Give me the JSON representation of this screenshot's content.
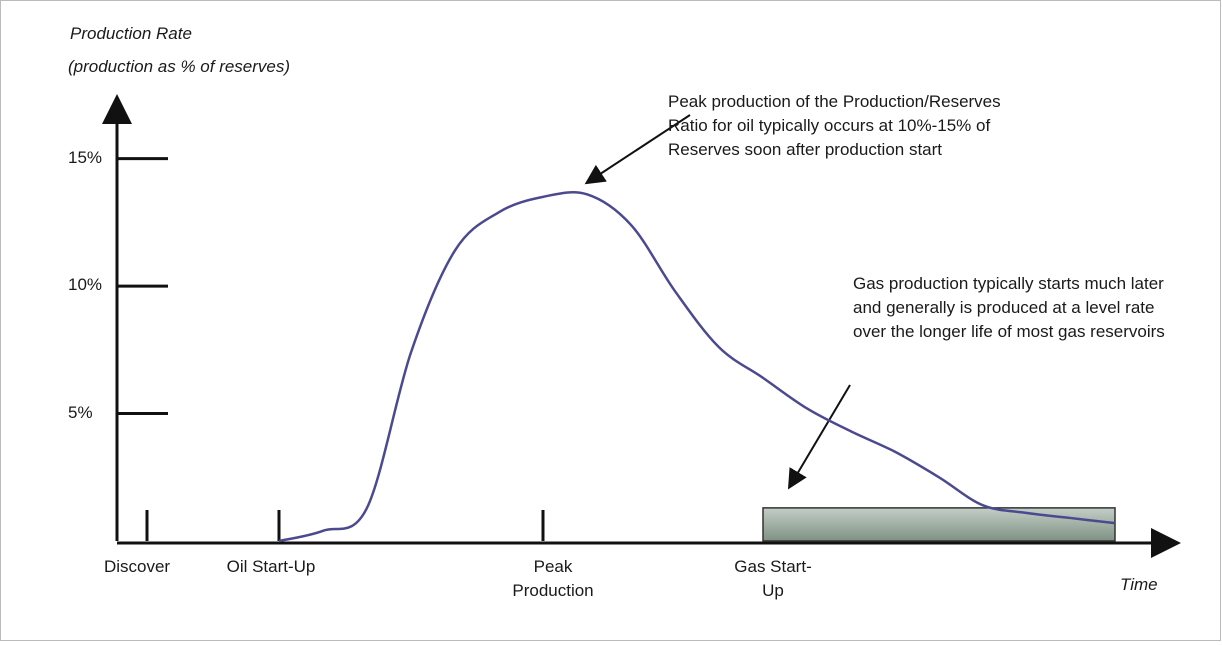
{
  "chart_data": {
    "type": "line",
    "title": "Production Rate",
    "subtitle": "(production as % of reserves)",
    "x_label": "Time",
    "categories": [
      "Discover",
      null,
      null,
      "Oil Start-Up",
      null,
      null,
      null,
      null,
      null,
      "Peak Production",
      null,
      null,
      null,
      null,
      "Gas Start-Up",
      null,
      null,
      null,
      null,
      null,
      null,
      null,
      null
    ],
    "series": [
      {
        "color": "#4b4a8f",
        "values": [
          null,
          null,
          null,
          0,
          0.4,
          1.3,
          7.4,
          11.4,
          12.9,
          13.5,
          13.6,
          12.4,
          9.8,
          7.6,
          6.4,
          5.2,
          4.3,
          3.5,
          2.5,
          1.4,
          1.1,
          0.9,
          0.7
        ]
      },
      {
        "type": "area",
        "color": "#9aab9f",
        "values": [
          null,
          null,
          null,
          null,
          null,
          null,
          null,
          null,
          null,
          null,
          null,
          null,
          null,
          null,
          1.3,
          1.3,
          1.3,
          1.3,
          1.3,
          1.3,
          1.3,
          1.3,
          1.3
        ]
      }
    ],
    "ylim": [
      0,
      17.3
    ],
    "yticks": [
      {
        "value": 5,
        "label": "5%"
      },
      {
        "value": 10,
        "label": "10%"
      },
      {
        "value": 15,
        "label": "15%"
      }
    ],
    "annotations": [
      "Peak production of the Production/Reserves Ratio for oil typically occurs at 10%-15% of Reserves soon after production start",
      "Gas production typically starts much later and generally is produced at a level rate over the longer life of most gas reservoirs"
    ]
  }
}
